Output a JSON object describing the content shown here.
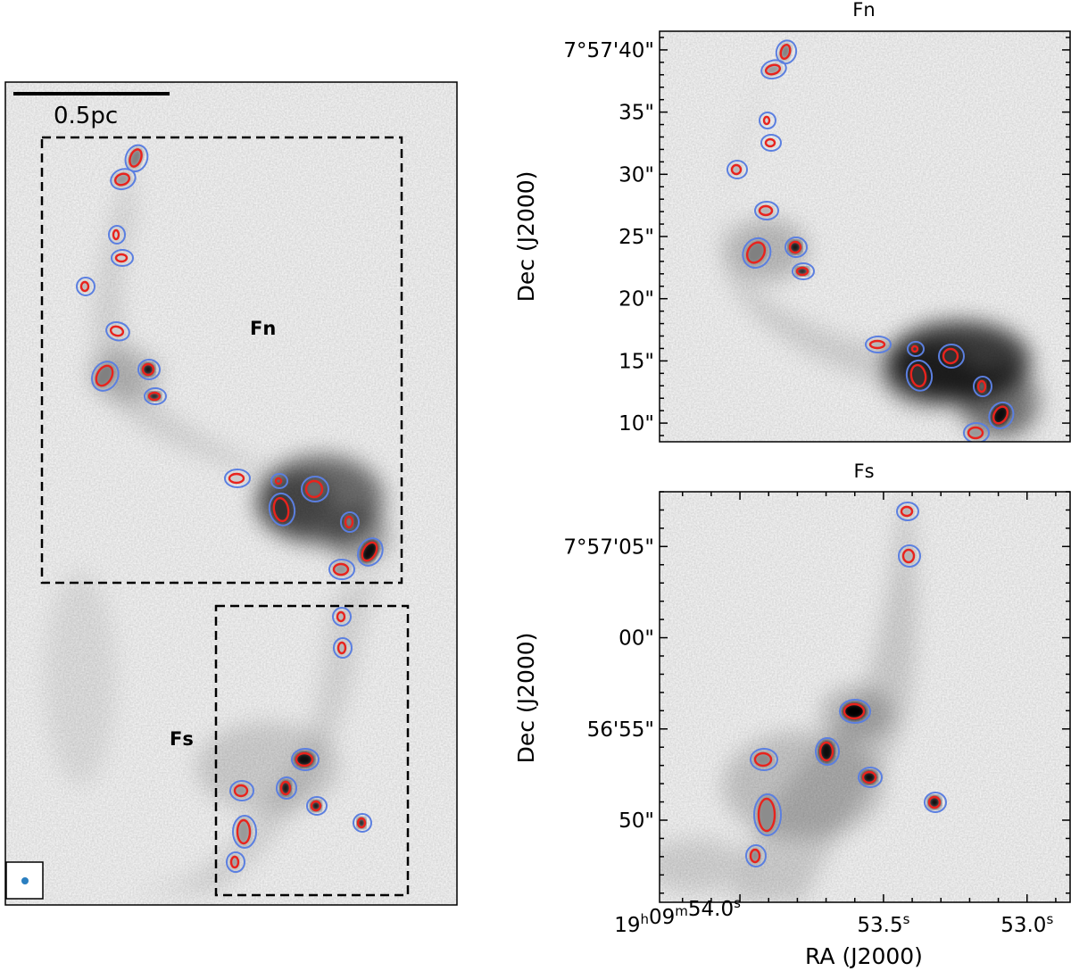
{
  "chart_data": [
    {
      "type": "heatmap",
      "panel": "overview",
      "title": "",
      "scale_bar_label": "0.5pc",
      "regions": [
        {
          "name": "Fn",
          "label": "Fn"
        },
        {
          "name": "Fs",
          "label": "Fs"
        }
      ],
      "beam": "circular synthesized beam",
      "colormap": "grayscale",
      "contours": {
        "outer": "blue",
        "core": "red"
      }
    },
    {
      "type": "heatmap",
      "panel": "zoom-north",
      "title": "Fn",
      "xlabel": "",
      "ylabel": "Dec (J2000)",
      "yticks": [
        "7°57'40\"",
        "35\"",
        "30\"",
        "25\"",
        "20\"",
        "15\"",
        "10\""
      ],
      "ytick_values_arcsec": [
        40,
        35,
        30,
        25,
        20,
        15,
        10
      ],
      "ylim_arcsec": [
        8.5,
        41.5
      ]
    },
    {
      "type": "heatmap",
      "panel": "zoom-south",
      "title": "Fs",
      "xlabel": "RA (J2000)",
      "ylabel": "Dec (J2000)",
      "yticks": [
        "7°57'05\"",
        "00\"",
        "56'55\"",
        "50\""
      ],
      "ytick_values_arcsec": [
        5,
        0,
        -5,
        -10
      ],
      "ylim_arcsec": [
        -14.5,
        8
      ],
      "xticks": [
        {
          "main": "19",
          "h": "h",
          "mm": "09",
          "m": "m",
          "ss": "54.0",
          "s": "s"
        },
        {
          "main": "53.5",
          "s": "s"
        },
        {
          "main": "53.0",
          "s": "s"
        }
      ],
      "xtick_values_s": [
        54.0,
        53.5,
        53.0
      ],
      "xlim_s": [
        54.28,
        52.85
      ]
    }
  ],
  "colors": {
    "contour_outer": "#5b7fe0",
    "contour_core": "#e8231d",
    "beam": "#2a7fc0",
    "frame": "#000000"
  }
}
